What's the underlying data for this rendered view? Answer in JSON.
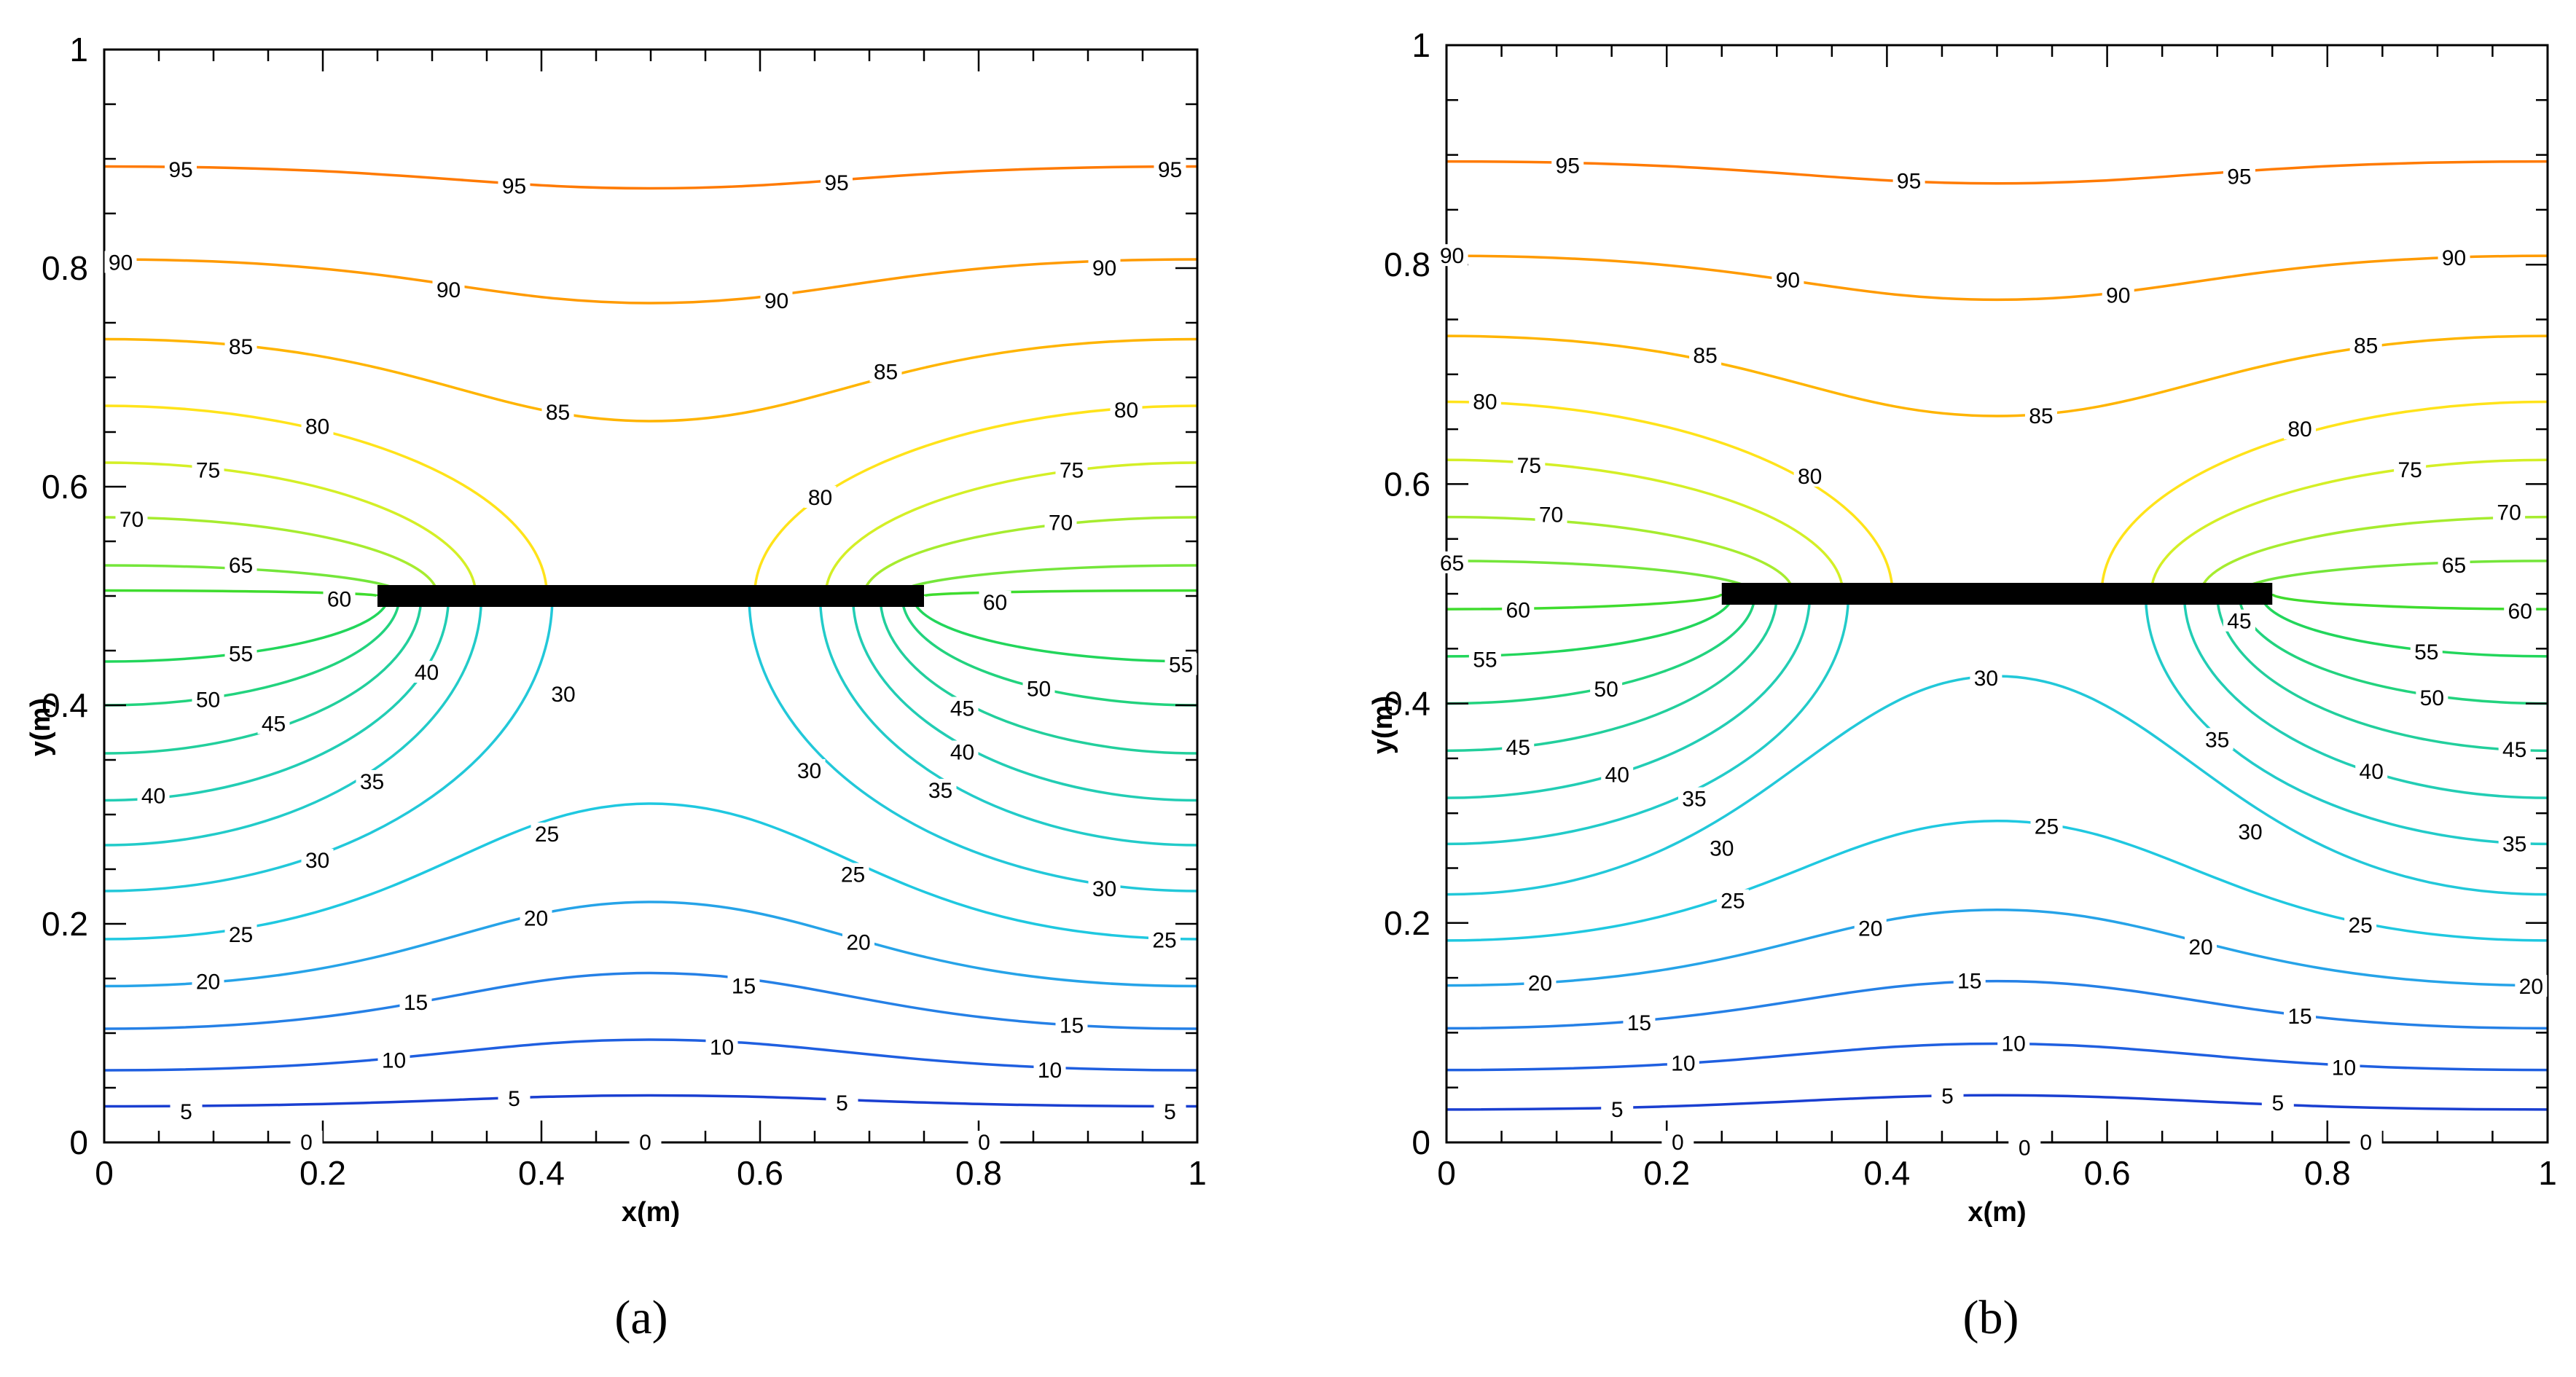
{
  "chart_data": [
    {
      "type": "contour",
      "panel_label": "(a)",
      "panel_letter": "a",
      "xlabel": "x(m)",
      "ylabel": "y(m)",
      "xlim": [
        0,
        1
      ],
      "ylim": [
        0,
        1
      ],
      "x_ticks": [
        "0",
        "0.2",
        "0.4",
        "0.6",
        "0.8",
        "1"
      ],
      "y_ticks": [
        "0",
        "0.2",
        "0.4",
        "0.6",
        "0.8",
        "1"
      ],
      "plate": {
        "x_start": 0.25,
        "x_end": 0.75,
        "y": 0.5
      },
      "lower": [
        {
          "level": 5,
          "color": "#1a3fd1",
          "y_edge": 0.033,
          "y_mid": 0.043
        },
        {
          "level": 10,
          "color": "#1f5fe0",
          "y_edge": 0.066,
          "y_mid": 0.094
        },
        {
          "level": 15,
          "color": "#2580e6",
          "y_edge": 0.104,
          "y_mid": 0.155
        },
        {
          "level": 20,
          "color": "#26a3e8",
          "y_edge": 0.143,
          "y_mid": 0.22
        },
        {
          "level": 25,
          "color": "#1fc8e0",
          "y_edge": 0.186,
          "y_mid": 0.31
        }
      ],
      "upper": [
        {
          "level": 95,
          "color": "#ff7a00",
          "y_edge": 0.893,
          "y_mid": 0.873
        },
        {
          "level": 90,
          "color": "#ff9a00",
          "y_edge": 0.808,
          "y_mid": 0.768
        },
        {
          "level": 85,
          "color": "#ffb400",
          "y_edge": 0.735,
          "y_mid": 0.66
        }
      ],
      "side": [
        {
          "level": 80,
          "color": "#ffe31a",
          "y_edge": 0.674,
          "x_cross": 0.405
        },
        {
          "level": 75,
          "color": "#d4ef26",
          "y_edge": 0.622,
          "x_cross": 0.34
        },
        {
          "level": 70,
          "color": "#a6ec2f",
          "y_edge": 0.572,
          "x_cross": 0.305
        },
        {
          "level": 65,
          "color": "#74e63a",
          "y_edge": 0.528,
          "x_cross": 0.275
        },
        {
          "level": 60,
          "color": "#3fdc2e",
          "y_edge": 0.505,
          "x_cross": 0.25
        },
        {
          "level": 55,
          "color": "#22d65b",
          "y_edge": 0.44,
          "x_cross": 0.26
        },
        {
          "level": 50,
          "color": "#22d37e",
          "y_edge": 0.4,
          "x_cross": 0.27
        },
        {
          "level": 45,
          "color": "#22cf9c",
          "y_edge": 0.356,
          "x_cross": 0.29
        },
        {
          "level": 40,
          "color": "#22cdb4",
          "y_edge": 0.313,
          "x_cross": 0.315
        },
        {
          "level": 35,
          "color": "#22cbc9",
          "y_edge": 0.272,
          "x_cross": 0.345
        },
        {
          "level": 30,
          "color": "#22c8d9",
          "y_edge": 0.23,
          "x_cross": 0.41
        }
      ],
      "labels": [
        {
          "text": "95",
          "x": 0.07,
          "y": 0.89
        },
        {
          "text": "95",
          "x": 0.375,
          "y": 0.875
        },
        {
          "text": "95",
          "x": 0.67,
          "y": 0.878
        },
        {
          "text": "95",
          "x": 0.975,
          "y": 0.89
        },
        {
          "text": "90",
          "x": 0.015,
          "y": 0.805
        },
        {
          "text": "90",
          "x": 0.315,
          "y": 0.78
        },
        {
          "text": "90",
          "x": 0.615,
          "y": 0.77
        },
        {
          "text": "90",
          "x": 0.915,
          "y": 0.8
        },
        {
          "text": "85",
          "x": 0.125,
          "y": 0.728
        },
        {
          "text": "85",
          "x": 0.415,
          "y": 0.668
        },
        {
          "text": "85",
          "x": 0.715,
          "y": 0.705
        },
        {
          "text": "80",
          "x": 0.195,
          "y": 0.655
        },
        {
          "text": "80",
          "x": 0.655,
          "y": 0.59
        },
        {
          "text": "80",
          "x": 0.935,
          "y": 0.67
        },
        {
          "text": "75",
          "x": 0.095,
          "y": 0.615
        },
        {
          "text": "75",
          "x": 0.885,
          "y": 0.615
        },
        {
          "text": "70",
          "x": 0.025,
          "y": 0.57
        },
        {
          "text": "70",
          "x": 0.875,
          "y": 0.567
        },
        {
          "text": "65",
          "x": 0.125,
          "y": 0.528
        },
        {
          "text": "60",
          "x": 0.215,
          "y": 0.497
        },
        {
          "text": "60",
          "x": 0.815,
          "y": 0.494
        },
        {
          "text": "55",
          "x": 0.125,
          "y": 0.447
        },
        {
          "text": "55",
          "x": 0.985,
          "y": 0.437
        },
        {
          "text": "50",
          "x": 0.095,
          "y": 0.405
        },
        {
          "text": "50",
          "x": 0.855,
          "y": 0.415
        },
        {
          "text": "45",
          "x": 0.155,
          "y": 0.383
        },
        {
          "text": "45",
          "x": 0.785,
          "y": 0.397
        },
        {
          "text": "40",
          "x": 0.045,
          "y": 0.317
        },
        {
          "text": "40",
          "x": 0.295,
          "y": 0.43
        },
        {
          "text": "40",
          "x": 0.785,
          "y": 0.357
        },
        {
          "text": "35",
          "x": 0.245,
          "y": 0.33
        },
        {
          "text": "35",
          "x": 0.765,
          "y": 0.322
        },
        {
          "text": "30",
          "x": 0.195,
          "y": 0.258
        },
        {
          "text": "30",
          "x": 0.42,
          "y": 0.41
        },
        {
          "text": "30",
          "x": 0.645,
          "y": 0.34
        },
        {
          "text": "30",
          "x": 0.915,
          "y": 0.232
        },
        {
          "text": "25",
          "x": 0.125,
          "y": 0.19
        },
        {
          "text": "25",
          "x": 0.405,
          "y": 0.282
        },
        {
          "text": "25",
          "x": 0.685,
          "y": 0.245
        },
        {
          "text": "25",
          "x": 0.97,
          "y": 0.185
        },
        {
          "text": "20",
          "x": 0.095,
          "y": 0.147
        },
        {
          "text": "20",
          "x": 0.395,
          "y": 0.205
        },
        {
          "text": "20",
          "x": 0.69,
          "y": 0.183
        },
        {
          "text": "15",
          "x": 0.285,
          "y": 0.128
        },
        {
          "text": "15",
          "x": 0.585,
          "y": 0.143
        },
        {
          "text": "15",
          "x": 0.885,
          "y": 0.107
        },
        {
          "text": "10",
          "x": 0.265,
          "y": 0.075
        },
        {
          "text": "10",
          "x": 0.565,
          "y": 0.087
        },
        {
          "text": "10",
          "x": 0.865,
          "y": 0.066
        },
        {
          "text": "5",
          "x": 0.075,
          "y": 0.028
        },
        {
          "text": "5",
          "x": 0.375,
          "y": 0.04
        },
        {
          "text": "5",
          "x": 0.675,
          "y": 0.036
        },
        {
          "text": "5",
          "x": 0.975,
          "y": 0.028
        },
        {
          "text": "0",
          "x": 0.185,
          "y": 0.0
        },
        {
          "text": "0",
          "x": 0.495,
          "y": 0.0
        },
        {
          "text": "0",
          "x": 0.805,
          "y": 0.0
        }
      ]
    },
    {
      "type": "contour",
      "panel_label": "(b)",
      "panel_letter": "b",
      "xlabel": "x(m)",
      "ylabel": "y(m)",
      "xlim": [
        0,
        1
      ],
      "ylim": [
        0,
        1
      ],
      "x_ticks": [
        "0",
        "0.2",
        "0.4",
        "0.6",
        "0.8",
        "1"
      ],
      "y_ticks": [
        "0",
        "0.2",
        "0.4",
        "0.6",
        "0.8",
        "1"
      ],
      "plate": {
        "x_start": 0.25,
        "x_end": 0.75,
        "y": 0.5
      },
      "lower": [
        {
          "level": 5,
          "color": "#1a3fd1",
          "y_edge": 0.03,
          "y_mid": 0.043
        },
        {
          "level": 10,
          "color": "#1f5fe0",
          "y_edge": 0.066,
          "y_mid": 0.09
        },
        {
          "level": 15,
          "color": "#2580e6",
          "y_edge": 0.104,
          "y_mid": 0.147
        },
        {
          "level": 20,
          "color": "#26a3e8",
          "y_edge": 0.143,
          "y_mid": 0.212
        },
        {
          "level": 25,
          "color": "#1fc8e0",
          "y_edge": 0.184,
          "y_mid": 0.293
        },
        {
          "level": 30,
          "color": "#22c8d9",
          "y_edge": 0.226,
          "y_mid": 0.425
        }
      ],
      "upper": [
        {
          "level": 95,
          "color": "#ff7a00",
          "y_edge": 0.894,
          "y_mid": 0.874
        },
        {
          "level": 90,
          "color": "#ff9a00",
          "y_edge": 0.808,
          "y_mid": 0.768
        },
        {
          "level": 85,
          "color": "#ffb400",
          "y_edge": 0.735,
          "y_mid": 0.662
        }
      ],
      "side": [
        {
          "level": 80,
          "color": "#ffe31a",
          "y_edge": 0.675,
          "x_cross": 0.405
        },
        {
          "level": 75,
          "color": "#d4ef26",
          "y_edge": 0.622,
          "x_cross": 0.36
        },
        {
          "level": 70,
          "color": "#a6ec2f",
          "y_edge": 0.57,
          "x_cross": 0.315
        },
        {
          "level": 65,
          "color": "#74e63a",
          "y_edge": 0.53,
          "x_cross": 0.28
        },
        {
          "level": 60,
          "color": "#3fdc2e",
          "y_edge": 0.486,
          "x_cross": 0.25
        },
        {
          "level": 55,
          "color": "#22d65b",
          "y_edge": 0.443,
          "x_cross": 0.26
        },
        {
          "level": 50,
          "color": "#22d37e",
          "y_edge": 0.4,
          "x_cross": 0.28
        },
        {
          "level": 45,
          "color": "#22cf9c",
          "y_edge": 0.357,
          "x_cross": 0.3
        },
        {
          "level": 40,
          "color": "#22cdb4",
          "y_edge": 0.314,
          "x_cross": 0.33
        },
        {
          "level": 35,
          "color": "#22cbc9",
          "y_edge": 0.272,
          "x_cross": 0.365
        }
      ],
      "labels": [
        {
          "text": "95",
          "x": 0.11,
          "y": 0.89
        },
        {
          "text": "95",
          "x": 0.42,
          "y": 0.876
        },
        {
          "text": "95",
          "x": 0.72,
          "y": 0.88
        },
        {
          "text": "90",
          "x": 0.005,
          "y": 0.808
        },
        {
          "text": "90",
          "x": 0.31,
          "y": 0.786
        },
        {
          "text": "90",
          "x": 0.61,
          "y": 0.772
        },
        {
          "text": "90",
          "x": 0.915,
          "y": 0.806
        },
        {
          "text": "85",
          "x": 0.235,
          "y": 0.717
        },
        {
          "text": "85",
          "x": 0.54,
          "y": 0.662
        },
        {
          "text": "85",
          "x": 0.835,
          "y": 0.726
        },
        {
          "text": "80",
          "x": 0.035,
          "y": 0.675
        },
        {
          "text": "80",
          "x": 0.33,
          "y": 0.607
        },
        {
          "text": "80",
          "x": 0.775,
          "y": 0.65
        },
        {
          "text": "75",
          "x": 0.075,
          "y": 0.617
        },
        {
          "text": "75",
          "x": 0.875,
          "y": 0.613
        },
        {
          "text": "70",
          "x": 0.095,
          "y": 0.572
        },
        {
          "text": "70",
          "x": 0.965,
          "y": 0.574
        },
        {
          "text": "65",
          "x": 0.005,
          "y": 0.528
        },
        {
          "text": "65",
          "x": 0.915,
          "y": 0.526
        },
        {
          "text": "60",
          "x": 0.065,
          "y": 0.485
        },
        {
          "text": "60",
          "x": 0.975,
          "y": 0.484
        },
        {
          "text": "55",
          "x": 0.035,
          "y": 0.44
        },
        {
          "text": "55",
          "x": 0.89,
          "y": 0.447
        },
        {
          "text": "50",
          "x": 0.145,
          "y": 0.413
        },
        {
          "text": "50",
          "x": 0.895,
          "y": 0.405
        },
        {
          "text": "45",
          "x": 0.065,
          "y": 0.36
        },
        {
          "text": "45",
          "x": 0.72,
          "y": 0.475
        },
        {
          "text": "45",
          "x": 0.97,
          "y": 0.358
        },
        {
          "text": "40",
          "x": 0.155,
          "y": 0.335
        },
        {
          "text": "40",
          "x": 0.84,
          "y": 0.338
        },
        {
          "text": "35",
          "x": 0.225,
          "y": 0.313
        },
        {
          "text": "35",
          "x": 0.7,
          "y": 0.367
        },
        {
          "text": "35",
          "x": 0.97,
          "y": 0.272
        },
        {
          "text": "30",
          "x": 0.25,
          "y": 0.268
        },
        {
          "text": "30",
          "x": 0.49,
          "y": 0.423
        },
        {
          "text": "30",
          "x": 0.73,
          "y": 0.283
        },
        {
          "text": "25",
          "x": 0.26,
          "y": 0.22
        },
        {
          "text": "25",
          "x": 0.545,
          "y": 0.288
        },
        {
          "text": "25",
          "x": 0.83,
          "y": 0.198
        },
        {
          "text": "20",
          "x": 0.085,
          "y": 0.145
        },
        {
          "text": "20",
          "x": 0.385,
          "y": 0.195
        },
        {
          "text": "20",
          "x": 0.685,
          "y": 0.178
        },
        {
          "text": "20",
          "x": 0.985,
          "y": 0.142
        },
        {
          "text": "15",
          "x": 0.175,
          "y": 0.109
        },
        {
          "text": "15",
          "x": 0.475,
          "y": 0.147
        },
        {
          "text": "15",
          "x": 0.775,
          "y": 0.115
        },
        {
          "text": "10",
          "x": 0.215,
          "y": 0.072
        },
        {
          "text": "10",
          "x": 0.515,
          "y": 0.09
        },
        {
          "text": "10",
          "x": 0.815,
          "y": 0.068
        },
        {
          "text": "5",
          "x": 0.155,
          "y": 0.03
        },
        {
          "text": "5",
          "x": 0.455,
          "y": 0.042
        },
        {
          "text": "5",
          "x": 0.755,
          "y": 0.036
        },
        {
          "text": "0",
          "x": 0.21,
          "y": 0.0
        },
        {
          "text": "0",
          "x": 0.525,
          "y": -0.005
        },
        {
          "text": "0",
          "x": 0.835,
          "y": 0.0
        }
      ]
    }
  ]
}
